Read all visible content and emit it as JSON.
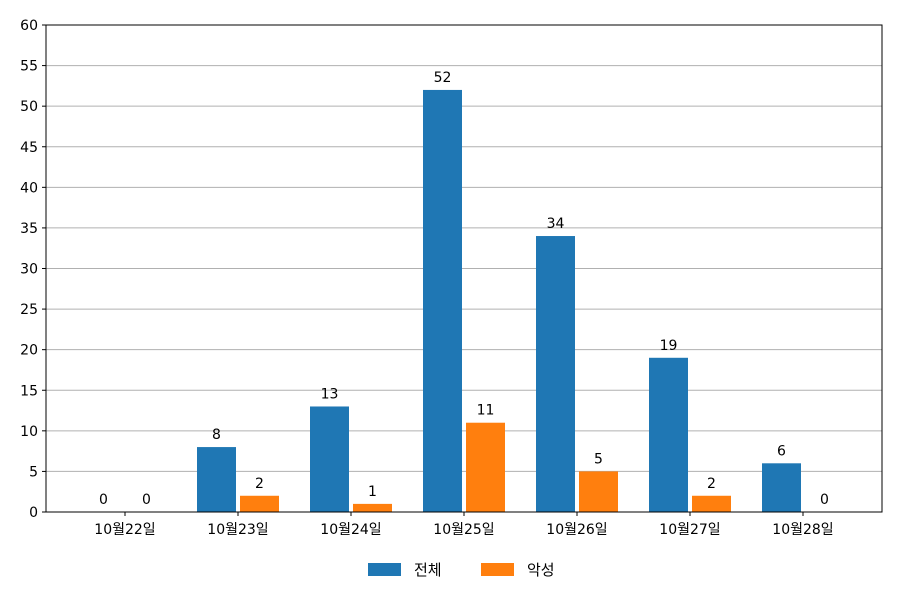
{
  "chart_data": {
    "type": "bar",
    "categories": [
      "10월22일",
      "10월23일",
      "10월24일",
      "10월25일",
      "10월26일",
      "10월27일",
      "10월28일"
    ],
    "series": [
      {
        "name": "전체",
        "color": "#1f77b4",
        "values": [
          0,
          8,
          13,
          52,
          34,
          19,
          6
        ]
      },
      {
        "name": "악성",
        "color": "#ff7f0e",
        "values": [
          0,
          2,
          1,
          11,
          5,
          2,
          0
        ]
      }
    ],
    "ylim": [
      0,
      60
    ],
    "yticks": [
      0,
      5,
      10,
      15,
      20,
      25,
      30,
      35,
      40,
      45,
      50,
      55,
      60
    ],
    "grid": true,
    "legend_position": "bottom-center"
  }
}
